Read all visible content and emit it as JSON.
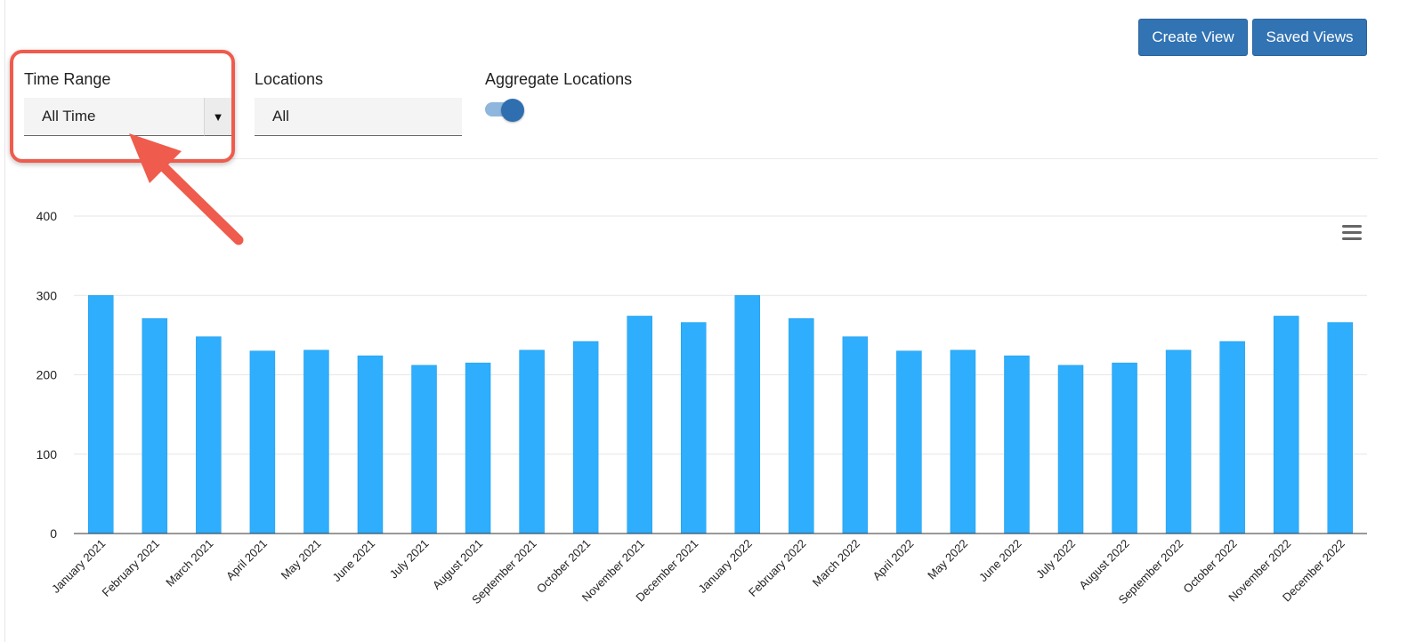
{
  "toolbar": {
    "create_view_label": "Create View",
    "saved_views_label": "Saved Views"
  },
  "filters": {
    "time_range": {
      "label": "Time Range",
      "value": "All Time"
    },
    "locations": {
      "label": "Locations",
      "value": "All"
    },
    "aggregate": {
      "label": "Aggregate Locations",
      "on": true
    }
  },
  "icons": {
    "dropdown": "chevron-down-icon",
    "chart_menu": "hamburger-menu-icon",
    "annotation": "arrow-annotation"
  },
  "colors": {
    "bar": "#2eaefc",
    "button": "#3273b4",
    "highlight": "#ef5b4c",
    "toggle_knob": "#2f6fb0",
    "toggle_track": "#8fb6dc"
  },
  "chart_data": {
    "type": "bar",
    "categories": [
      "January 2021",
      "February 2021",
      "March 2021",
      "April 2021",
      "May 2021",
      "June 2021",
      "July 2021",
      "August 2021",
      "September 2021",
      "October 2021",
      "November 2021",
      "December 2021",
      "January 2022",
      "February 2022",
      "March 2022",
      "April 2022",
      "May 2022",
      "June 2022",
      "July 2022",
      "August 2022",
      "September 2022",
      "October 2022",
      "November 2022",
      "December 2022"
    ],
    "values": [
      300,
      271,
      248,
      230,
      231,
      224,
      212,
      215,
      231,
      242,
      274,
      266,
      300,
      271,
      248,
      230,
      231,
      224,
      212,
      215,
      231,
      242,
      274,
      266
    ],
    "yticks": [
      0,
      100,
      200,
      300,
      400
    ],
    "ylim": [
      0,
      400
    ],
    "grid": true,
    "legend": "none"
  }
}
